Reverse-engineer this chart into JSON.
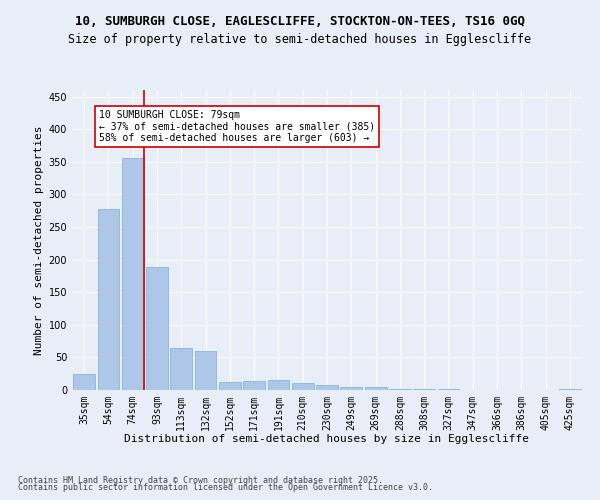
{
  "title_line1": "10, SUMBURGH CLOSE, EAGLESCLIFFE, STOCKTON-ON-TEES, TS16 0GQ",
  "title_line2": "Size of property relative to semi-detached houses in Egglescliffe",
  "xlabel": "Distribution of semi-detached houses by size in Egglescliffe",
  "ylabel": "Number of semi-detached properties",
  "categories": [
    "35sqm",
    "54sqm",
    "74sqm",
    "93sqm",
    "113sqm",
    "132sqm",
    "152sqm",
    "171sqm",
    "191sqm",
    "210sqm",
    "230sqm",
    "249sqm",
    "269sqm",
    "288sqm",
    "308sqm",
    "327sqm",
    "347sqm",
    "366sqm",
    "386sqm",
    "405sqm",
    "425sqm"
  ],
  "values": [
    25,
    277,
    356,
    188,
    65,
    60,
    13,
    14,
    15,
    10,
    8,
    5,
    4,
    1,
    1,
    1,
    0,
    0,
    0,
    0,
    2
  ],
  "bar_color": "#aec6e8",
  "bar_edge_color": "#7aafd4",
  "property_bin_index": 2,
  "vline_color": "#cc0000",
  "annotation_text": "10 SUMBURGH CLOSE: 79sqm\n← 37% of semi-detached houses are smaller (385)\n58% of semi-detached houses are larger (603) →",
  "annotation_box_color": "#ffffff",
  "annotation_box_edge_color": "#cc0000",
  "ylim": [
    0,
    460
  ],
  "yticks": [
    0,
    50,
    100,
    150,
    200,
    250,
    300,
    350,
    400,
    450
  ],
  "footer_line1": "Contains HM Land Registry data © Crown copyright and database right 2025.",
  "footer_line2": "Contains public sector information licensed under the Open Government Licence v3.0.",
  "background_color": "#e8eef8",
  "grid_color": "#ffffff",
  "title_fontsize": 9,
  "subtitle_fontsize": 8.5,
  "axis_label_fontsize": 8,
  "tick_fontsize": 7,
  "footer_fontsize": 6
}
